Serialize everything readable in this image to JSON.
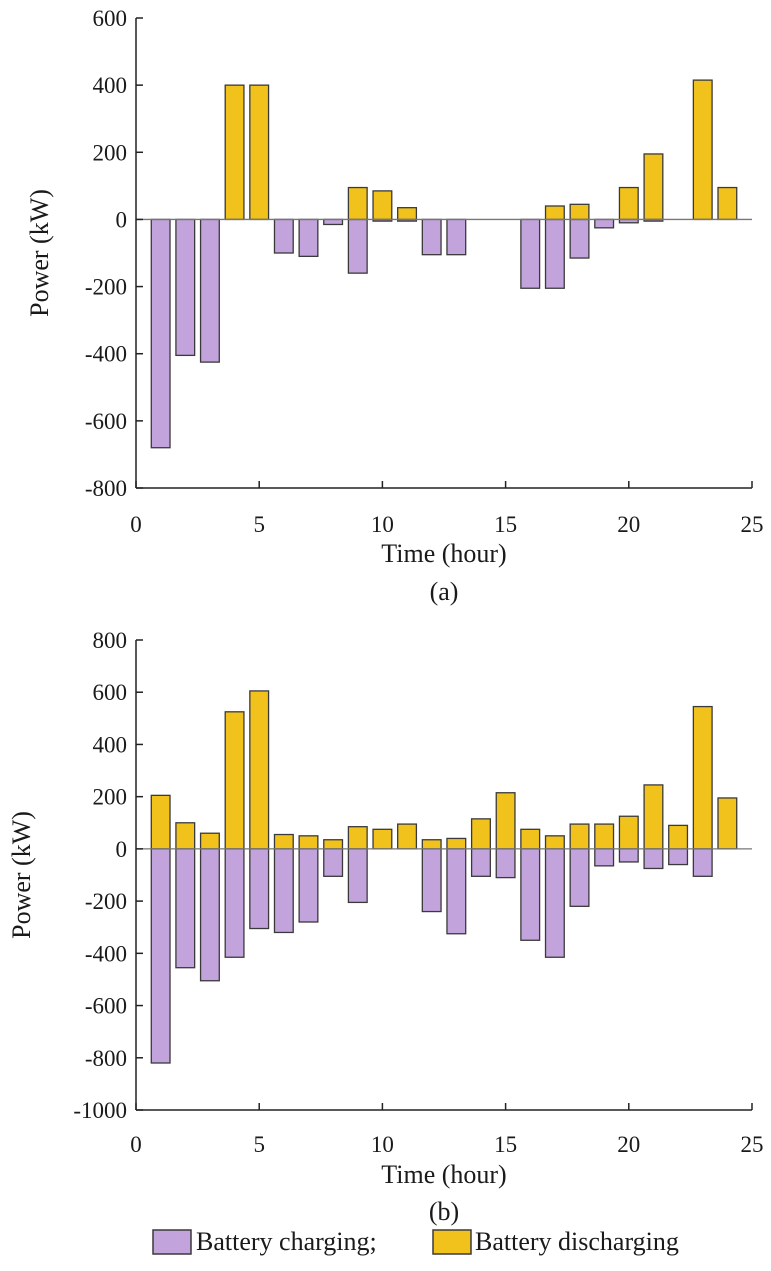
{
  "colors": {
    "charging": "#c3a3dc",
    "discharging": "#f1c21b",
    "bar_edge": "#3a3a3a",
    "axis": "#222222",
    "zero_line": "#777777"
  },
  "legend": {
    "charging_label": "Battery charging;",
    "discharging_label": "Battery discharging"
  },
  "chart_data": [
    {
      "type": "bar",
      "panel_label": "(a)",
      "xlabel": "Time (hour)",
      "ylabel": "Power (kW)",
      "xlim": [
        0,
        25
      ],
      "ylim": [
        -800,
        600
      ],
      "xticks": [
        0,
        5,
        10,
        15,
        20,
        25
      ],
      "yticks": [
        600,
        400,
        200,
        0,
        -200,
        -400,
        -600,
        -800
      ],
      "x": [
        1,
        2,
        3,
        4,
        5,
        6,
        7,
        8,
        9,
        10,
        11,
        12,
        13,
        14,
        15,
        16,
        17,
        18,
        19,
        20,
        21,
        22,
        23,
        24
      ],
      "series": [
        {
          "name": "Battery charging;",
          "values": [
            -680,
            -405,
            -425,
            0,
            0,
            -100,
            -110,
            -15,
            -160,
            -5,
            -5,
            -105,
            -105,
            0,
            0,
            -205,
            -205,
            -115,
            -25,
            -10,
            -5,
            0,
            0,
            0
          ]
        },
        {
          "name": "Battery discharging",
          "values": [
            0,
            0,
            0,
            400,
            400,
            0,
            0,
            0,
            95,
            85,
            35,
            0,
            0,
            0,
            0,
            0,
            40,
            45,
            0,
            95,
            195,
            0,
            415,
            95
          ]
        }
      ]
    },
    {
      "type": "bar",
      "panel_label": "(b)",
      "xlabel": "Time (hour)",
      "ylabel": "Power (kW)",
      "xlim": [
        0,
        25
      ],
      "ylim": [
        -1000,
        800
      ],
      "xticks": [
        0,
        5,
        10,
        15,
        20,
        25
      ],
      "yticks": [
        800,
        600,
        400,
        200,
        0,
        -200,
        -400,
        -600,
        -800,
        -1000
      ],
      "x": [
        1,
        2,
        3,
        4,
        5,
        6,
        7,
        8,
        9,
        10,
        11,
        12,
        13,
        14,
        15,
        16,
        17,
        18,
        19,
        20,
        21,
        22,
        23,
        24
      ],
      "series": [
        {
          "name": "Battery charging;",
          "values": [
            -820,
            -455,
            -505,
            -415,
            -305,
            -320,
            -280,
            -105,
            -205,
            0,
            0,
            -240,
            -325,
            -105,
            -110,
            -350,
            -415,
            -220,
            -65,
            -50,
            -75,
            -60,
            -105,
            0
          ]
        },
        {
          "name": "Battery discharging",
          "values": [
            205,
            100,
            60,
            525,
            605,
            55,
            50,
            35,
            85,
            75,
            95,
            35,
            40,
            115,
            215,
            75,
            50,
            95,
            95,
            125,
            245,
            90,
            545,
            195
          ]
        }
      ]
    }
  ]
}
